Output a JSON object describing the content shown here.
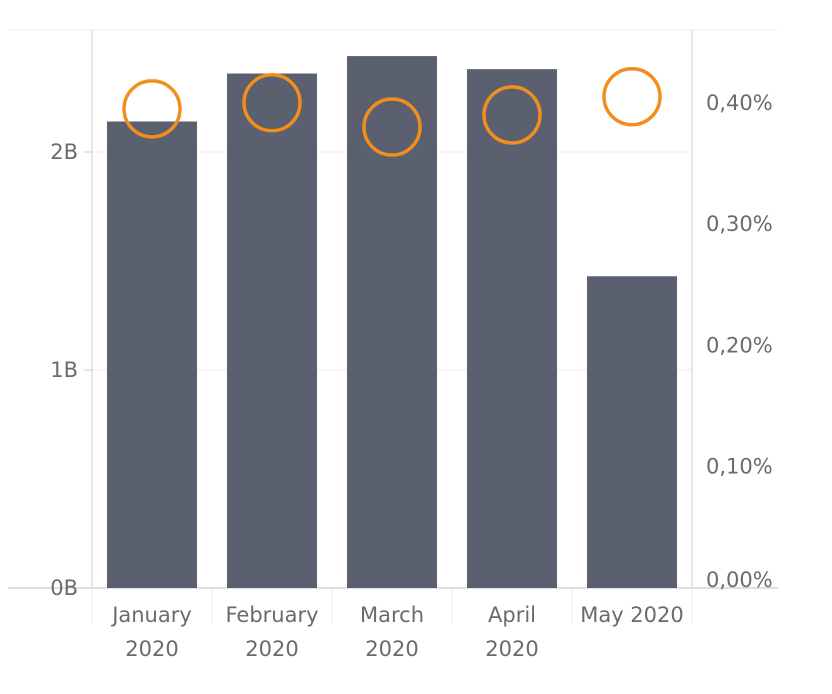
{
  "chart_data": {
    "type": "bar",
    "categories": [
      [
        "January",
        "2020"
      ],
      [
        "February",
        "2020"
      ],
      [
        "March",
        "2020"
      ],
      [
        "April",
        "2020"
      ],
      [
        "May 2020"
      ]
    ],
    "series": [
      {
        "kind": "bar",
        "axis": "left",
        "values": [
          2.14,
          2.36,
          2.44,
          2.38,
          1.43
        ]
      },
      {
        "kind": "circle-marker",
        "axis": "right",
        "values": [
          0.395,
          0.4,
          0.38,
          0.39,
          0.405
        ]
      }
    ],
    "y_left": {
      "range": [
        0,
        2.5
      ],
      "ticks": [
        0,
        1,
        2
      ],
      "tick_labels": [
        "0B",
        "1B",
        "2B"
      ]
    },
    "y_right": {
      "range": [
        0,
        0.45
      ],
      "ticks": [
        0,
        0.1,
        0.2,
        0.3,
        0.4
      ],
      "tick_labels": [
        "0,00%",
        "0,10%",
        "0,20%",
        "0,30%",
        "0,40%"
      ]
    },
    "grid": true,
    "legend": "none",
    "colors": {
      "bar": "#5a6070",
      "marker": "#f28e1c",
      "grid": "#ebebeb",
      "axis": "#cccccc",
      "tick_text": "#6b6b6b"
    }
  }
}
